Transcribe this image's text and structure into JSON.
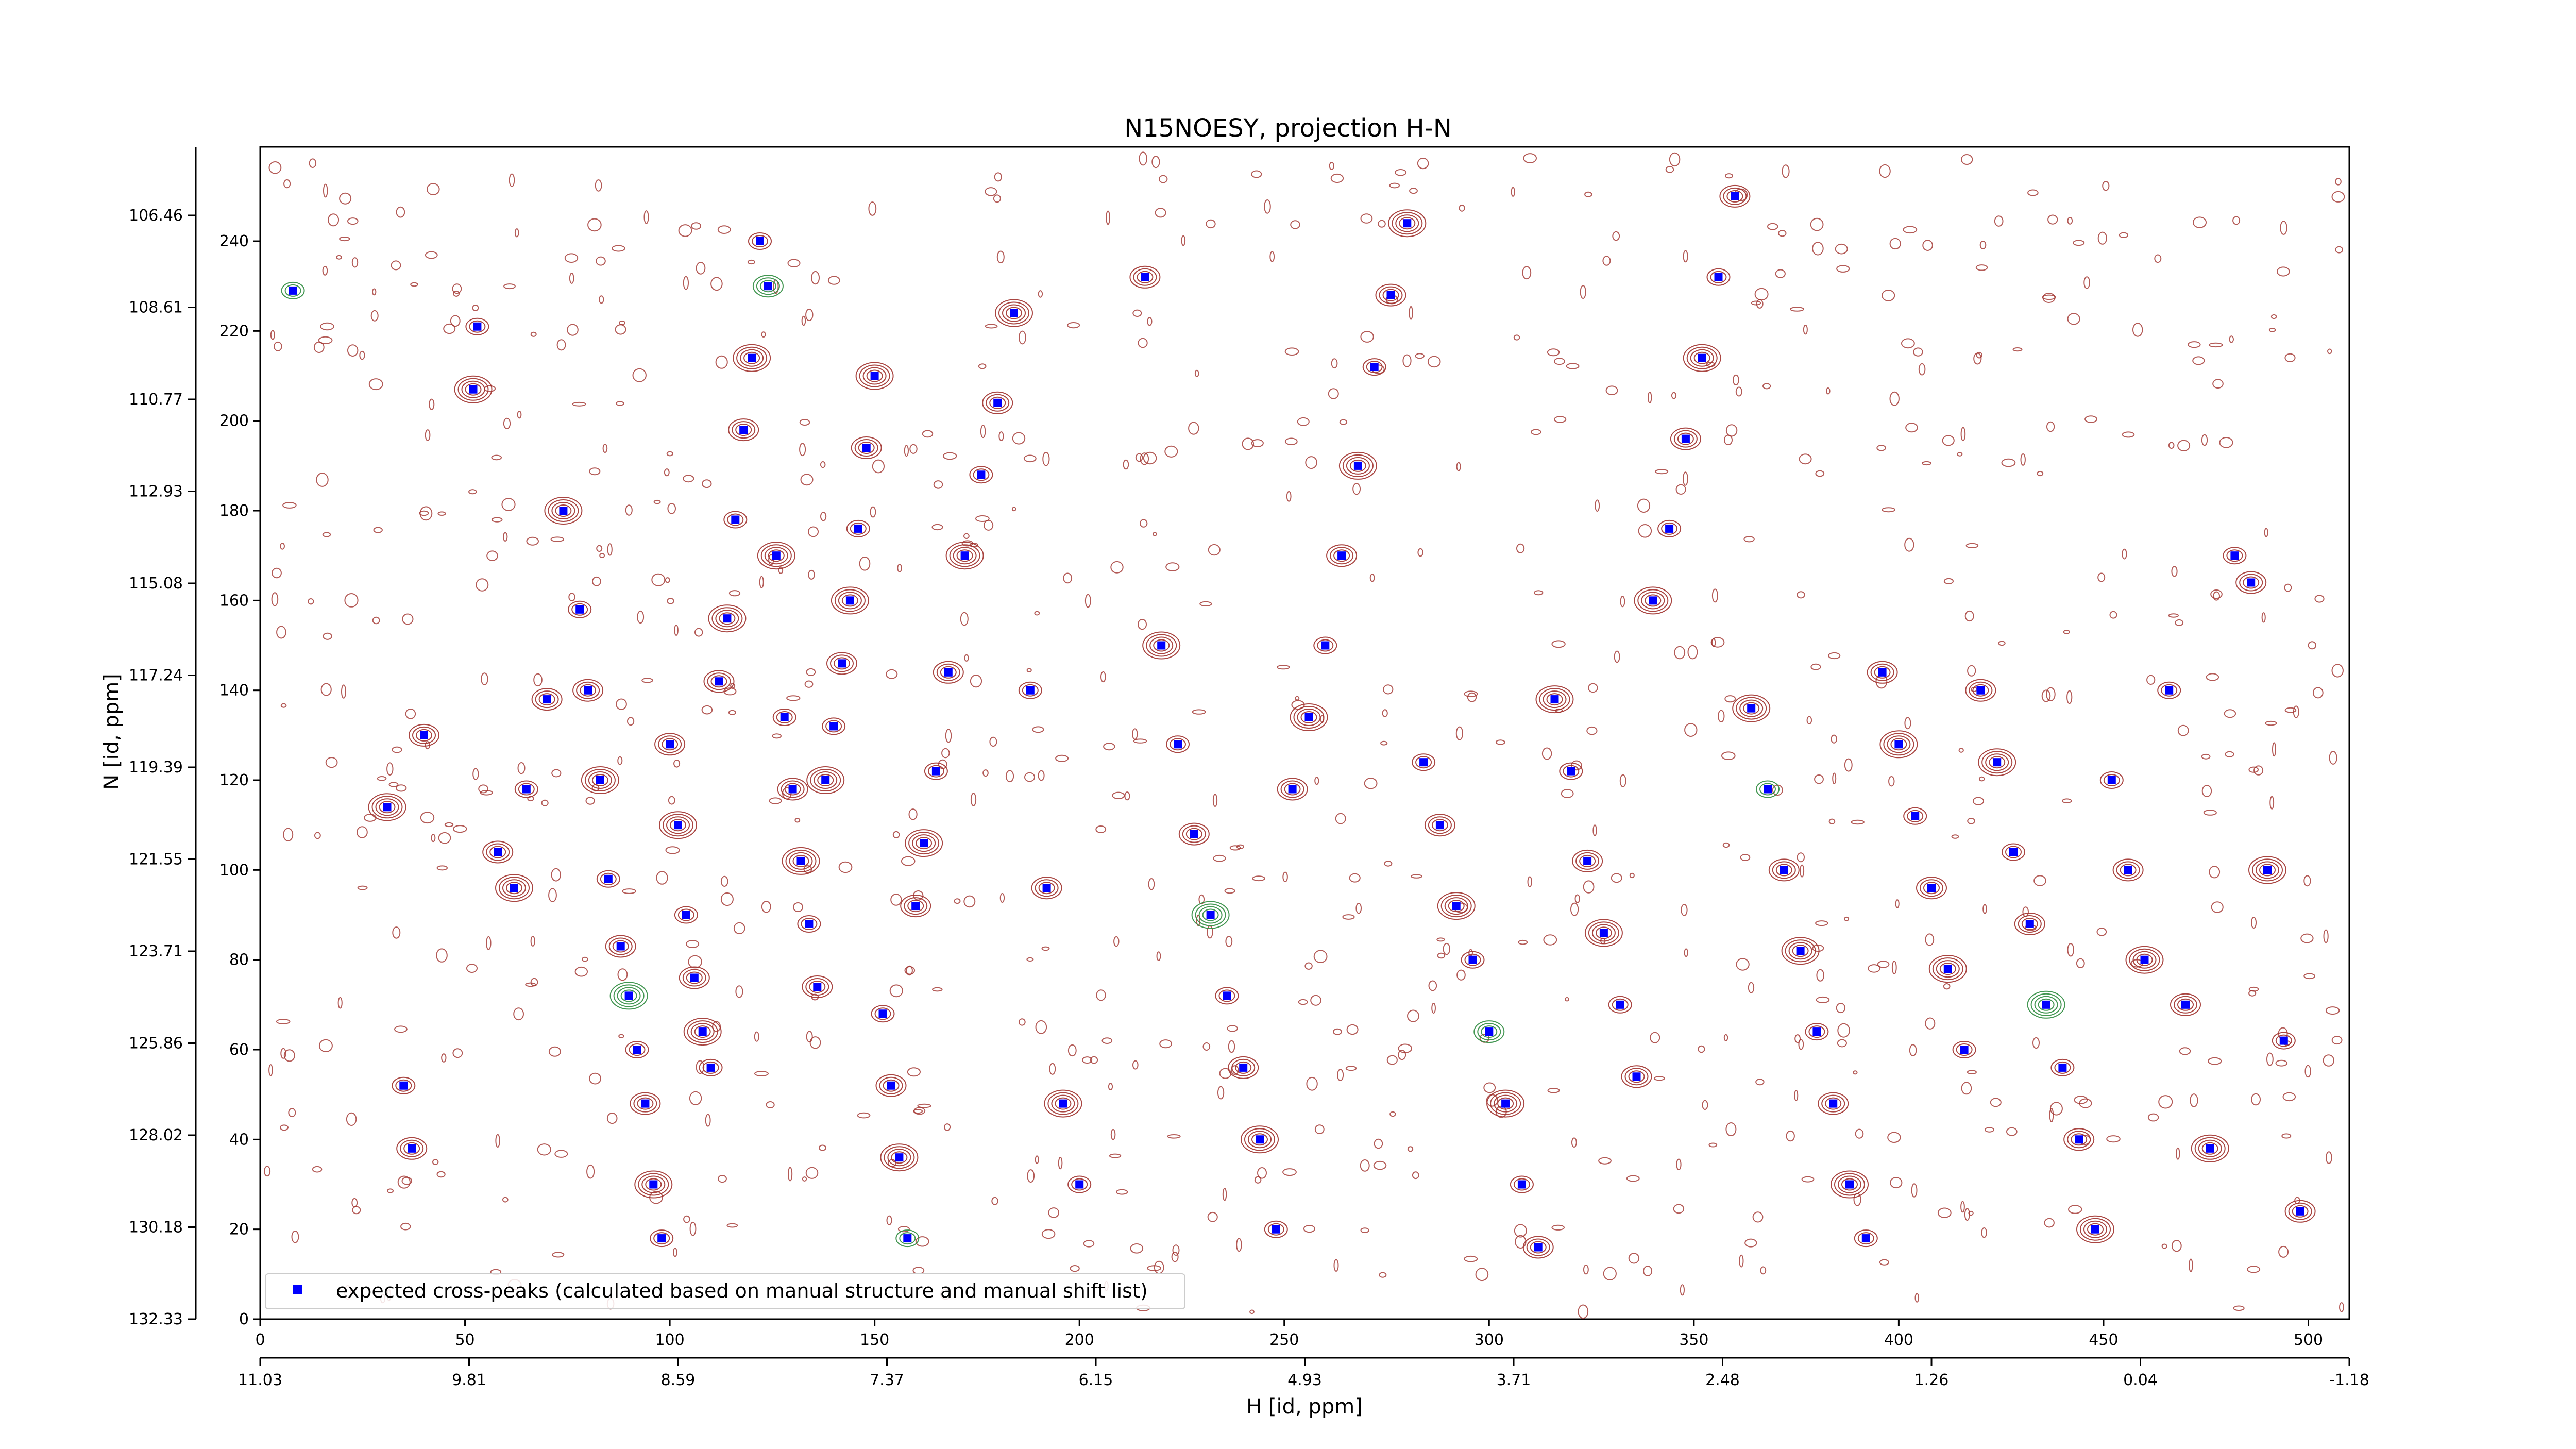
{
  "chart_data": {
    "type": "scatter",
    "title": "N15NOESY, projection H-N",
    "xlabel": "H [id, ppm]",
    "ylabel": "N [id, ppm]",
    "index_x_ticks": [
      "0",
      "50",
      "100",
      "150",
      "200",
      "250",
      "300",
      "350",
      "400",
      "450",
      "500"
    ],
    "index_y_ticks": [
      "0",
      "20",
      "40",
      "60",
      "80",
      "100",
      "120",
      "140",
      "160",
      "180",
      "200",
      "220",
      "240"
    ],
    "ppm_x_ticks": [
      "11.03",
      "9.81",
      "8.59",
      "7.37",
      "6.15",
      "4.93",
      "3.71",
      "2.48",
      "1.26",
      "0.04",
      "-1.18"
    ],
    "ppm_y_ticks": [
      "106.46",
      "108.61",
      "110.77",
      "112.93",
      "115.08",
      "117.24",
      "119.39",
      "121.55",
      "123.71",
      "125.86",
      "128.02",
      "130.18",
      "132.33"
    ],
    "xlim": [
      0,
      510
    ],
    "ylim": [
      0,
      261
    ],
    "grid": false,
    "legend_position": "bottom-left",
    "series": [
      {
        "name": "expected cross-peaks (calculated based on manual structure and manual shift list)",
        "color": "#0000ff",
        "marker": "square",
        "points": [
          [
            8,
            229
          ],
          [
            40,
            130
          ],
          [
            31,
            114
          ],
          [
            35,
            52
          ],
          [
            37,
            38
          ],
          [
            52,
            207
          ],
          [
            53,
            221
          ],
          [
            58,
            104
          ],
          [
            62,
            96
          ],
          [
            65,
            118
          ],
          [
            70,
            138
          ],
          [
            74,
            180
          ],
          [
            78,
            158
          ],
          [
            80,
            140
          ],
          [
            83,
            120
          ],
          [
            85,
            98
          ],
          [
            88,
            83
          ],
          [
            90,
            72
          ],
          [
            92,
            60
          ],
          [
            94,
            48
          ],
          [
            96,
            30
          ],
          [
            98,
            18
          ],
          [
            100,
            128
          ],
          [
            102,
            110
          ],
          [
            104,
            90
          ],
          [
            106,
            76
          ],
          [
            108,
            64
          ],
          [
            110,
            56
          ],
          [
            112,
            142
          ],
          [
            114,
            156
          ],
          [
            116,
            178
          ],
          [
            118,
            198
          ],
          [
            120,
            214
          ],
          [
            122,
            240
          ],
          [
            124,
            230
          ],
          [
            126,
            170
          ],
          [
            128,
            134
          ],
          [
            130,
            118
          ],
          [
            132,
            102
          ],
          [
            134,
            88
          ],
          [
            136,
            74
          ],
          [
            138,
            120
          ],
          [
            140,
            132
          ],
          [
            142,
            146
          ],
          [
            144,
            160
          ],
          [
            146,
            176
          ],
          [
            148,
            194
          ],
          [
            150,
            210
          ],
          [
            152,
            68
          ],
          [
            154,
            52
          ],
          [
            156,
            36
          ],
          [
            158,
            18
          ],
          [
            160,
            92
          ],
          [
            162,
            106
          ],
          [
            165,
            122
          ],
          [
            168,
            144
          ],
          [
            172,
            170
          ],
          [
            176,
            188
          ],
          [
            180,
            204
          ],
          [
            184,
            224
          ],
          [
            188,
            140
          ],
          [
            192,
            96
          ],
          [
            196,
            48
          ],
          [
            200,
            30
          ],
          [
            216,
            232
          ],
          [
            220,
            150
          ],
          [
            224,
            128
          ],
          [
            228,
            108
          ],
          [
            232,
            90
          ],
          [
            236,
            72
          ],
          [
            240,
            56
          ],
          [
            244,
            40
          ],
          [
            248,
            20
          ],
          [
            252,
            118
          ],
          [
            256,
            134
          ],
          [
            260,
            150
          ],
          [
            264,
            170
          ],
          [
            268,
            190
          ],
          [
            272,
            212
          ],
          [
            276,
            228
          ],
          [
            280,
            244
          ],
          [
            284,
            124
          ],
          [
            288,
            110
          ],
          [
            292,
            92
          ],
          [
            296,
            80
          ],
          [
            300,
            64
          ],
          [
            304,
            48
          ],
          [
            308,
            30
          ],
          [
            312,
            16
          ],
          [
            316,
            138
          ],
          [
            320,
            122
          ],
          [
            324,
            102
          ],
          [
            328,
            86
          ],
          [
            332,
            70
          ],
          [
            336,
            54
          ],
          [
            340,
            160
          ],
          [
            344,
            176
          ],
          [
            348,
            196
          ],
          [
            352,
            214
          ],
          [
            356,
            232
          ],
          [
            360,
            250
          ],
          [
            364,
            136
          ],
          [
            368,
            118
          ],
          [
            372,
            100
          ],
          [
            376,
            82
          ],
          [
            380,
            64
          ],
          [
            384,
            48
          ],
          [
            388,
            30
          ],
          [
            392,
            18
          ],
          [
            396,
            144
          ],
          [
            400,
            128
          ],
          [
            404,
            112
          ],
          [
            408,
            96
          ],
          [
            412,
            78
          ],
          [
            416,
            60
          ],
          [
            420,
            140
          ],
          [
            424,
            124
          ],
          [
            428,
            104
          ],
          [
            432,
            88
          ],
          [
            436,
            70
          ],
          [
            440,
            56
          ],
          [
            444,
            40
          ],
          [
            448,
            20
          ],
          [
            452,
            120
          ],
          [
            456,
            100
          ],
          [
            460,
            80
          ],
          [
            466,
            140
          ],
          [
            470,
            70
          ],
          [
            476,
            38
          ],
          [
            482,
            170
          ],
          [
            486,
            164
          ],
          [
            490,
            100
          ],
          [
            494,
            62
          ],
          [
            498,
            24
          ]
        ]
      }
    ],
    "contour_colors": {
      "positive": "#a0312c",
      "negative": "#2e8b3e"
    }
  }
}
